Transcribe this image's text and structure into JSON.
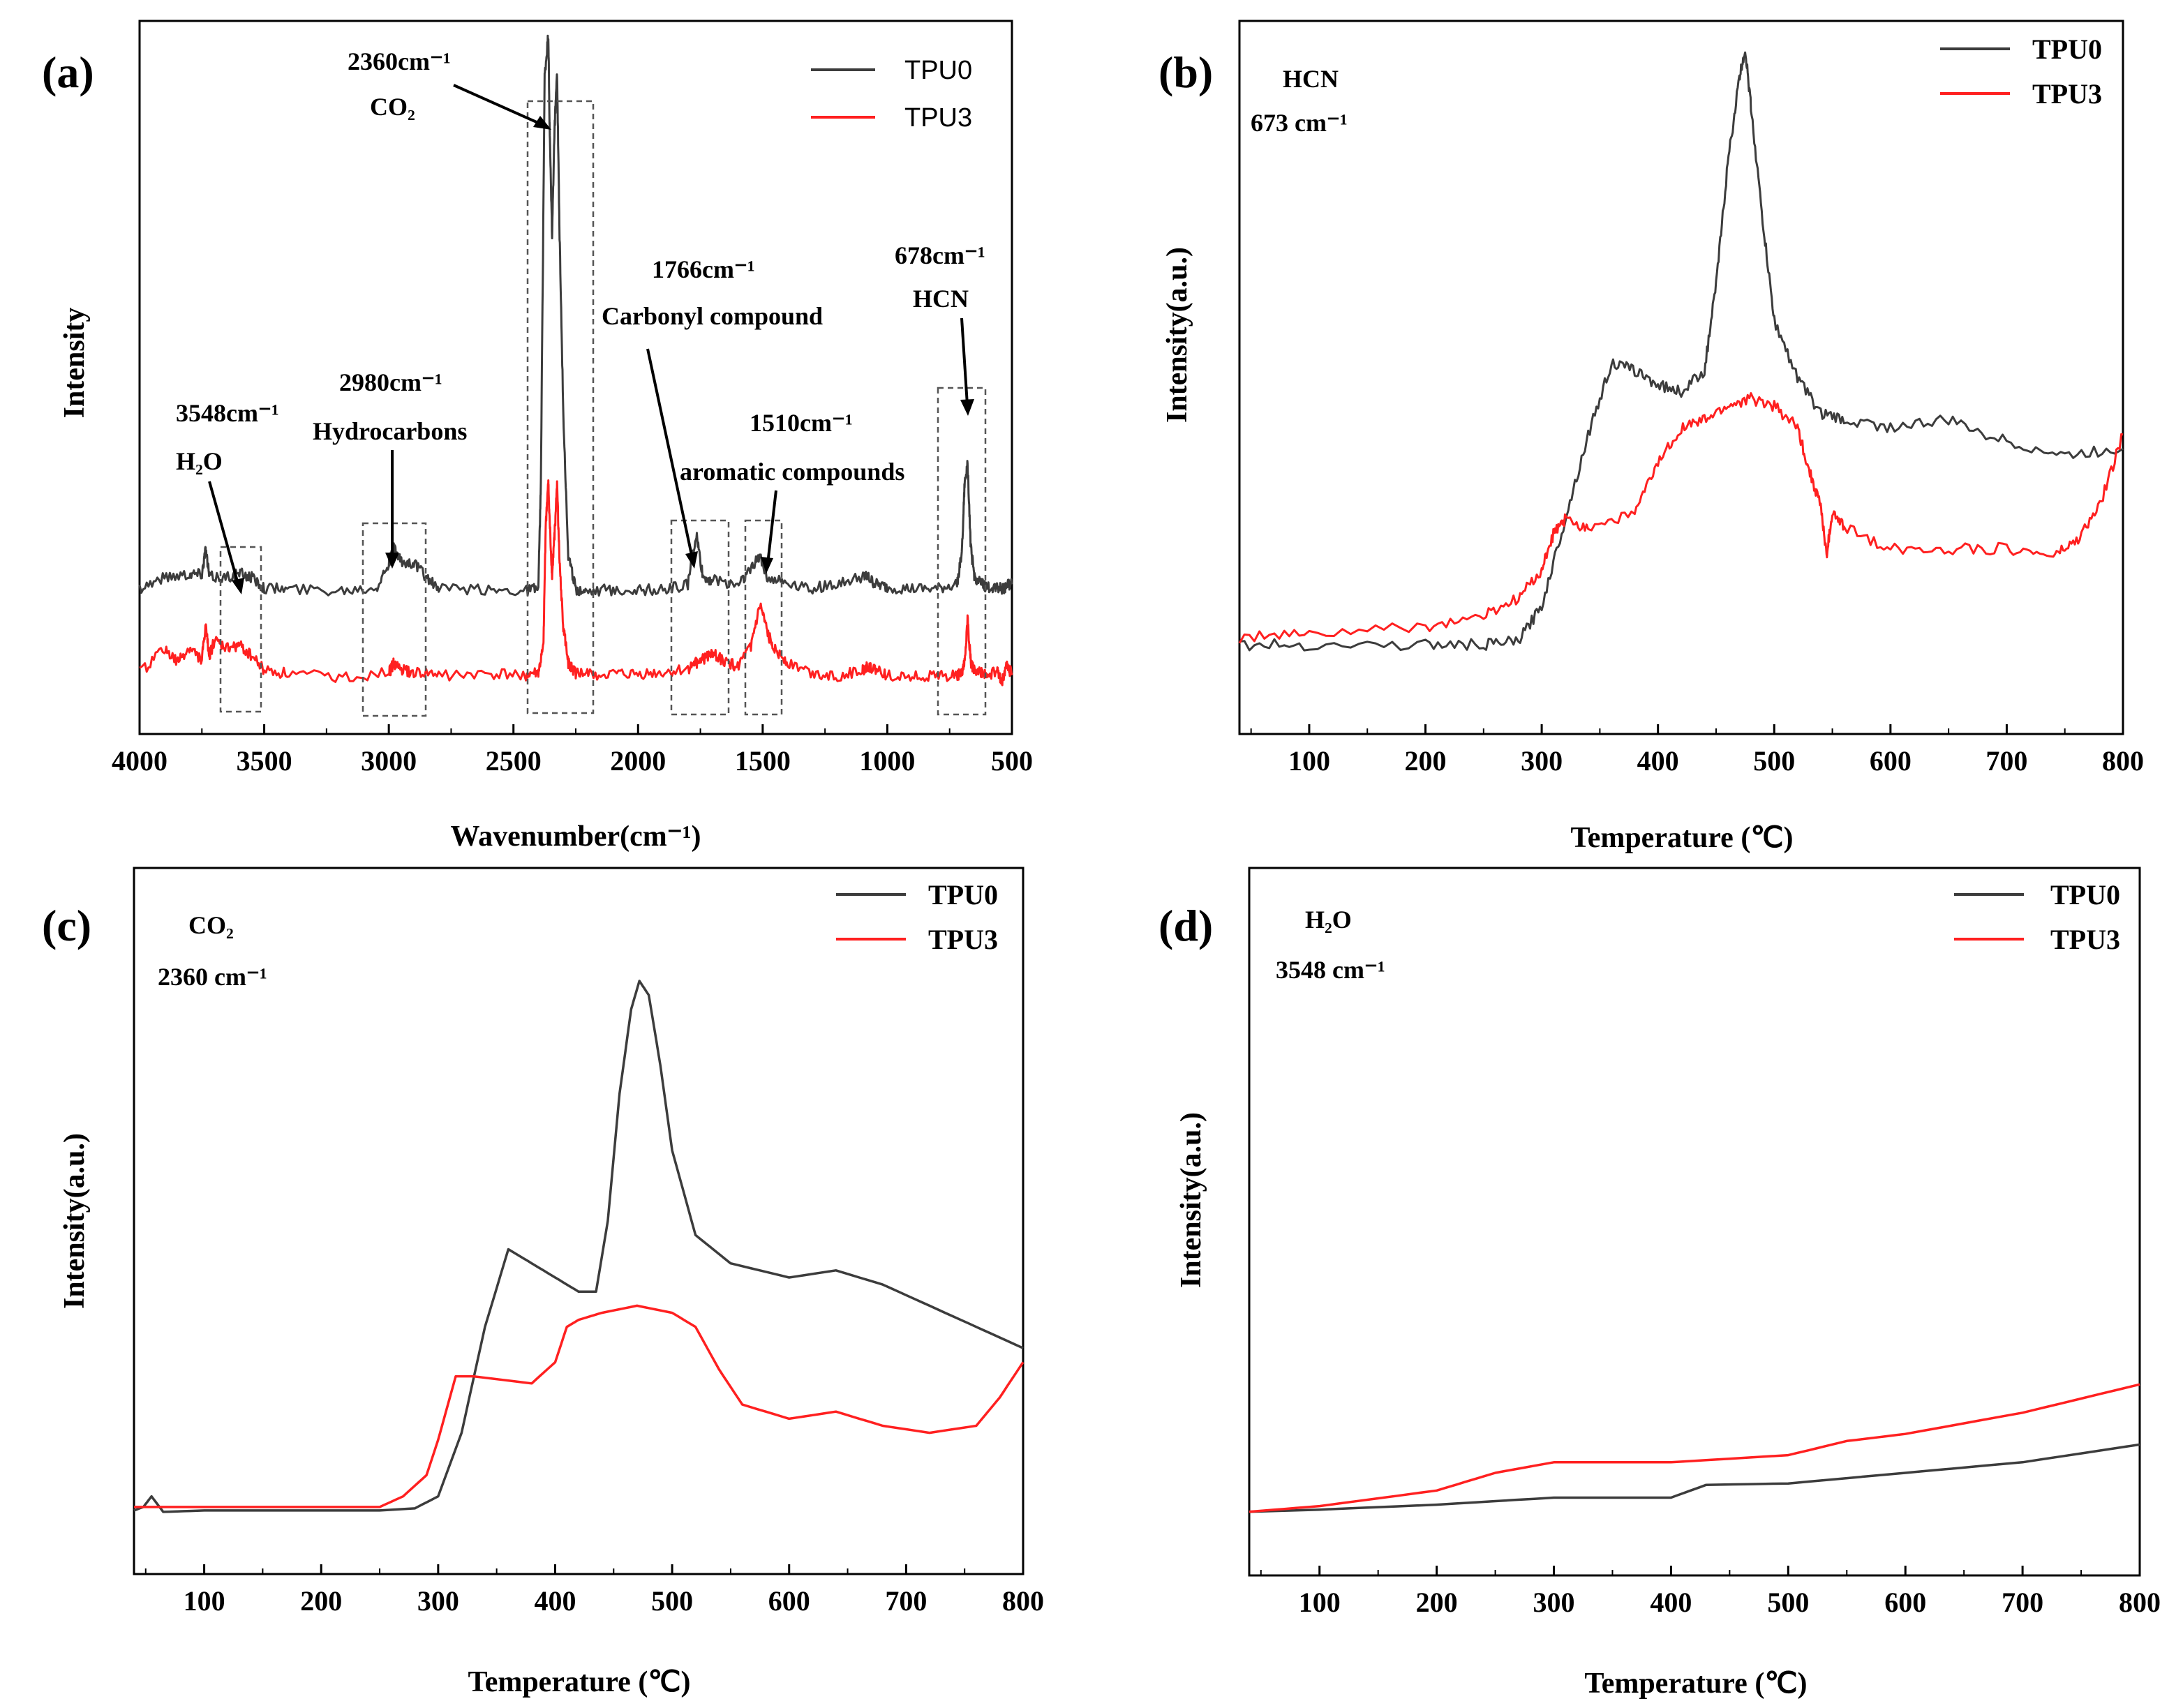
{
  "colors": {
    "tpu0": "#3c3c3c",
    "tpu3": "#ff2020"
  },
  "panels": {
    "a": {
      "label": "(a)",
      "xlabel": "Wavenumber(cm⁻¹)",
      "ylabel": "Intensity",
      "xticks": [
        "4000",
        "3500",
        "3000",
        "2500",
        "2000",
        "1500",
        "1000",
        "500"
      ],
      "legend": [
        "TPU0",
        "TPU3"
      ],
      "annotations": {
        "co2_wn": "2360cm⁻¹",
        "co2_name": "CO₂",
        "hc_wn": "2980cm⁻¹",
        "hc_name": "Hydrocarbons",
        "h2o_wn": "3548cm⁻¹",
        "h2o_name": "H₂O",
        "carb_wn": "1766cm⁻¹",
        "carb_name": "Carbonyl compound",
        "arom_wn": "1510cm⁻¹",
        "arom_name": "aromatic compounds",
        "hcn_wn": "678cm⁻¹",
        "hcn_name": "HCN"
      }
    },
    "b": {
      "label": "(b)",
      "gas": "HCN",
      "wn": "673 cm⁻¹",
      "xlabel": "Temperature (℃)",
      "ylabel": "Intensity(a.u.)",
      "legend": [
        "TPU0",
        "TPU3"
      ]
    },
    "c": {
      "label": "(c)",
      "gas": "CO₂",
      "wn": "2360 cm⁻¹",
      "xlabel": "Temperature (℃)",
      "ylabel": "Intensity(a.u.)",
      "legend": [
        "TPU0",
        "TPU3"
      ]
    },
    "d": {
      "label": "(d)",
      "gas": "H₂O",
      "wn": "3548 cm⁻¹",
      "xlabel": "Temperature (℃)",
      "ylabel": "Intensity(a.u.)",
      "legend": [
        "TPU0",
        "TPU3"
      ]
    },
    "temp_ticks": [
      "100",
      "200",
      "300",
      "400",
      "500",
      "600",
      "700",
      "800"
    ]
  },
  "chart_data": [
    {
      "panel": "a",
      "type": "line",
      "title": "",
      "xlabel": "Wavenumber(cm⁻¹)",
      "ylabel": "Intensity",
      "xlim": [
        4000,
        500
      ],
      "ylim": [
        0,
        100
      ],
      "series": [
        {
          "name": "TPU0",
          "x": [
            4000,
            3900,
            3800,
            3750,
            3735,
            3720,
            3650,
            3600,
            3550,
            3500,
            3400,
            3200,
            3050,
            3000,
            2980,
            2950,
            2900,
            2850,
            2800,
            2600,
            2450,
            2400,
            2390,
            2375,
            2360,
            2355,
            2345,
            2335,
            2325,
            2315,
            2300,
            2280,
            2250,
            2200,
            2100,
            2000,
            1900,
            1800,
            1766,
            1740,
            1700,
            1600,
            1550,
            1510,
            1480,
            1400,
            1300,
            1200,
            1100,
            1080,
            1050,
            1000,
            900,
            800,
            720,
            700,
            690,
            678,
            665,
            650,
            620,
            600,
            560,
            540,
            520,
            500
          ],
          "values": [
            20.5,
            22,
            22.5,
            22.5,
            26,
            22,
            22,
            22.5,
            22,
            20.5,
            20.3,
            20.2,
            20.6,
            24,
            26,
            24,
            24,
            22,
            20.3,
            20.2,
            20.2,
            20.5,
            35,
            92,
            98,
            85,
            70,
            85,
            93,
            70,
            45,
            25,
            20.3,
            20.2,
            20.2,
            20.2,
            20.2,
            21,
            28,
            22,
            21.5,
            21,
            23,
            25,
            22,
            21.2,
            20.5,
            21,
            22,
            22,
            21,
            20.5,
            20.3,
            20.3,
            21,
            26,
            35,
            38,
            26,
            22,
            21,
            20.5,
            20.8,
            20.3,
            20.8,
            21
          ]
        },
        {
          "name": "TPU3",
          "x": [
            4000,
            3900,
            3850,
            3800,
            3750,
            3735,
            3720,
            3700,
            3650,
            3600,
            3550,
            3500,
            3400,
            3200,
            3000,
            2980,
            2950,
            2900,
            2800,
            2600,
            2450,
            2400,
            2380,
            2370,
            2360,
            2355,
            2345,
            2335,
            2325,
            2315,
            2300,
            2280,
            2250,
            2200,
            2100,
            2000,
            1900,
            1800,
            1766,
            1740,
            1700,
            1650,
            1600,
            1550,
            1510,
            1480,
            1450,
            1400,
            1300,
            1200,
            1100,
            1080,
            1050,
            1000,
            900,
            800,
            720,
            700,
            690,
            678,
            665,
            650,
            620,
            600,
            560,
            540,
            520,
            500
          ],
          "values": [
            8.5,
            12,
            10,
            12,
            10.5,
            15,
            11,
            13,
            12,
            12.5,
            11,
            9,
            8.5,
            8,
            8.5,
            10,
            9,
            8.5,
            8.3,
            8.3,
            8.3,
            8.5,
            12,
            30,
            35,
            30,
            22,
            28,
            35,
            24,
            15,
            10,
            8.5,
            8.3,
            8.3,
            8.3,
            8.5,
            9,
            10,
            10.5,
            11.5,
            10,
            9.5,
            12,
            18,
            14,
            12,
            10,
            8.5,
            8.2,
            8.8,
            9.5,
            9,
            8.3,
            8.2,
            8.2,
            8.2,
            8.5,
            10,
            16,
            10,
            9,
            8.5,
            8.3,
            8.8,
            7.5,
            9.5,
            8.5
          ]
        }
      ]
    },
    {
      "panel": "b",
      "type": "line",
      "title": "HCN 673 cm⁻¹",
      "xlabel": "Temperature (℃)",
      "ylabel": "Intensity(a.u.)",
      "xlim": [
        40,
        800
      ],
      "ylim": [
        0,
        100
      ],
      "series": [
        {
          "name": "TPU0",
          "x": [
            40,
            100,
            200,
            250,
            280,
            300,
            320,
            340,
            360,
            380,
            400,
            420,
            440,
            450,
            460,
            470,
            475,
            480,
            490,
            500,
            520,
            540,
            560,
            600,
            650,
            700,
            750,
            800
          ],
          "values": [
            12.5,
            12.5,
            12.5,
            12.5,
            13,
            18,
            30,
            42,
            52,
            51,
            49,
            48,
            51,
            63,
            80,
            92,
            96,
            88,
            72,
            58,
            50,
            45,
            44,
            43,
            44,
            41,
            39,
            40
          ]
        },
        {
          "name": "TPU3",
          "x": [
            40,
            100,
            200,
            250,
            280,
            300,
            310,
            320,
            340,
            380,
            400,
            420,
            440,
            460,
            480,
            500,
            520,
            530,
            540,
            545,
            550,
            560,
            600,
            650,
            700,
            740,
            760,
            780,
            800
          ],
          "values": [
            13.5,
            14,
            15,
            16.5,
            19,
            23,
            28,
            30,
            29,
            31,
            38,
            43,
            44,
            46,
            47,
            46,
            43,
            37,
            32,
            25,
            31,
            29,
            26,
            26,
            26,
            25,
            27,
            32,
            42
          ]
        }
      ]
    },
    {
      "panel": "c",
      "type": "line",
      "title": "CO₂ 2360 cm⁻¹",
      "xlabel": "Temperature (℃)",
      "ylabel": "Intensity(a.u.)",
      "xlim": [
        40,
        800
      ],
      "ylim": [
        0,
        100
      ],
      "series": [
        {
          "name": "TPU0",
          "x": [
            40,
            48,
            55,
            65,
            100,
            200,
            250,
            280,
            300,
            320,
            340,
            360,
            380,
            400,
            420,
            435,
            445,
            455,
            465,
            472,
            480,
            490,
            500,
            520,
            550,
            600,
            640,
            680,
            720,
            760,
            800
          ],
          "values": [
            9,
            9.5,
            11,
            8.8,
            9,
            9,
            9,
            9.3,
            11,
            20,
            35,
            46,
            44,
            42,
            40,
            40,
            50,
            68,
            80,
            84,
            82,
            72,
            60,
            48,
            44,
            42,
            43,
            41,
            38,
            35,
            32
          ]
        },
        {
          "name": "TPU3",
          "x": [
            40,
            100,
            200,
            250,
            270,
            290,
            300,
            310,
            315,
            330,
            380,
            400,
            410,
            420,
            440,
            470,
            500,
            520,
            540,
            560,
            600,
            640,
            680,
            720,
            760,
            780,
            800
          ],
          "values": [
            9.5,
            9.5,
            9.5,
            9.5,
            11,
            14,
            19,
            25,
            28,
            28,
            27,
            30,
            35,
            36,
            37,
            38,
            37,
            35,
            29,
            24,
            22,
            23,
            21,
            20,
            21,
            25,
            30
          ]
        }
      ]
    },
    {
      "panel": "d",
      "type": "line",
      "title": "H₂O 3548 cm⁻¹",
      "xlabel": "Temperature (℃)",
      "ylabel": "Intensity(a.u.)",
      "xlim": [
        40,
        800
      ],
      "ylim": [
        0,
        100
      ],
      "series": [
        {
          "name": "TPU0",
          "x": [
            40,
            100,
            200,
            300,
            400,
            430,
            500,
            600,
            700,
            800
          ],
          "values": [
            9,
            9.3,
            10,
            11,
            11,
            12.8,
            13,
            14.5,
            16,
            18.5
          ]
        },
        {
          "name": "TPU3",
          "x": [
            40,
            100,
            200,
            250,
            300,
            400,
            500,
            550,
            600,
            700,
            800
          ],
          "values": [
            9,
            9.8,
            12,
            14.5,
            16,
            16,
            17,
            19,
            20,
            23,
            27
          ]
        }
      ]
    }
  ]
}
